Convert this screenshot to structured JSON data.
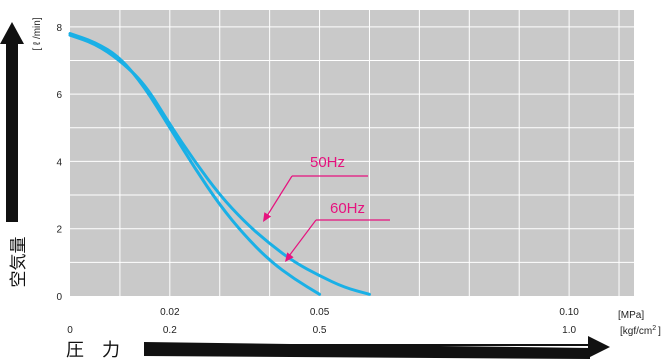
{
  "chart_data": {
    "type": "line",
    "grid": true,
    "y_axis_label": "空気量",
    "y_unit": "[ ℓ /min]",
    "x_axis_label": "圧　力",
    "x_unit_mpa": "[MPa]",
    "x_unit_kgf": "[kgf/cm",
    "x_unit_kgf_sup": "2",
    "x_unit_kgf_close": "]",
    "ylim": [
      0,
      8.5
    ],
    "xlim_mpa": [
      0,
      0.113
    ],
    "y_ticks": [
      "0",
      "2",
      "4",
      "6",
      "8"
    ],
    "x_ticks_mpa": [
      {
        "value": 0.02,
        "label": "0.02"
      },
      {
        "value": 0.05,
        "label": "0.05"
      },
      {
        "value": 0.1,
        "label": "0.10"
      }
    ],
    "x_ticks_kgf": [
      {
        "value": 0,
        "label": "0"
      },
      {
        "value": 0.02,
        "label": "0.2"
      },
      {
        "value": 0.05,
        "label": "0.5"
      },
      {
        "value": 0.1,
        "label": "1.0"
      }
    ],
    "series": [
      {
        "name": "50Hz",
        "color": "#1ab0e6",
        "label_color": "#e6127e",
        "points": [
          [
            0,
            7.75
          ],
          [
            0.005,
            7.5
          ],
          [
            0.01,
            7.0
          ],
          [
            0.015,
            6.3
          ],
          [
            0.02,
            5.1
          ],
          [
            0.025,
            4.0
          ],
          [
            0.03,
            3.0
          ],
          [
            0.035,
            2.2
          ],
          [
            0.04,
            1.55
          ],
          [
            0.045,
            1.0
          ],
          [
            0.05,
            0.6
          ],
          [
            0.055,
            0.25
          ],
          [
            0.06,
            0.05
          ]
        ]
      },
      {
        "name": "60Hz",
        "color": "#1ab0e6",
        "label_color": "#e6127e",
        "points": [
          [
            0,
            7.8
          ],
          [
            0.005,
            7.55
          ],
          [
            0.01,
            7.1
          ],
          [
            0.015,
            6.2
          ],
          [
            0.02,
            5.0
          ],
          [
            0.025,
            3.8
          ],
          [
            0.03,
            2.7
          ],
          [
            0.035,
            1.8
          ],
          [
            0.04,
            1.05
          ],
          [
            0.045,
            0.5
          ],
          [
            0.05,
            0.05
          ]
        ]
      }
    ]
  }
}
